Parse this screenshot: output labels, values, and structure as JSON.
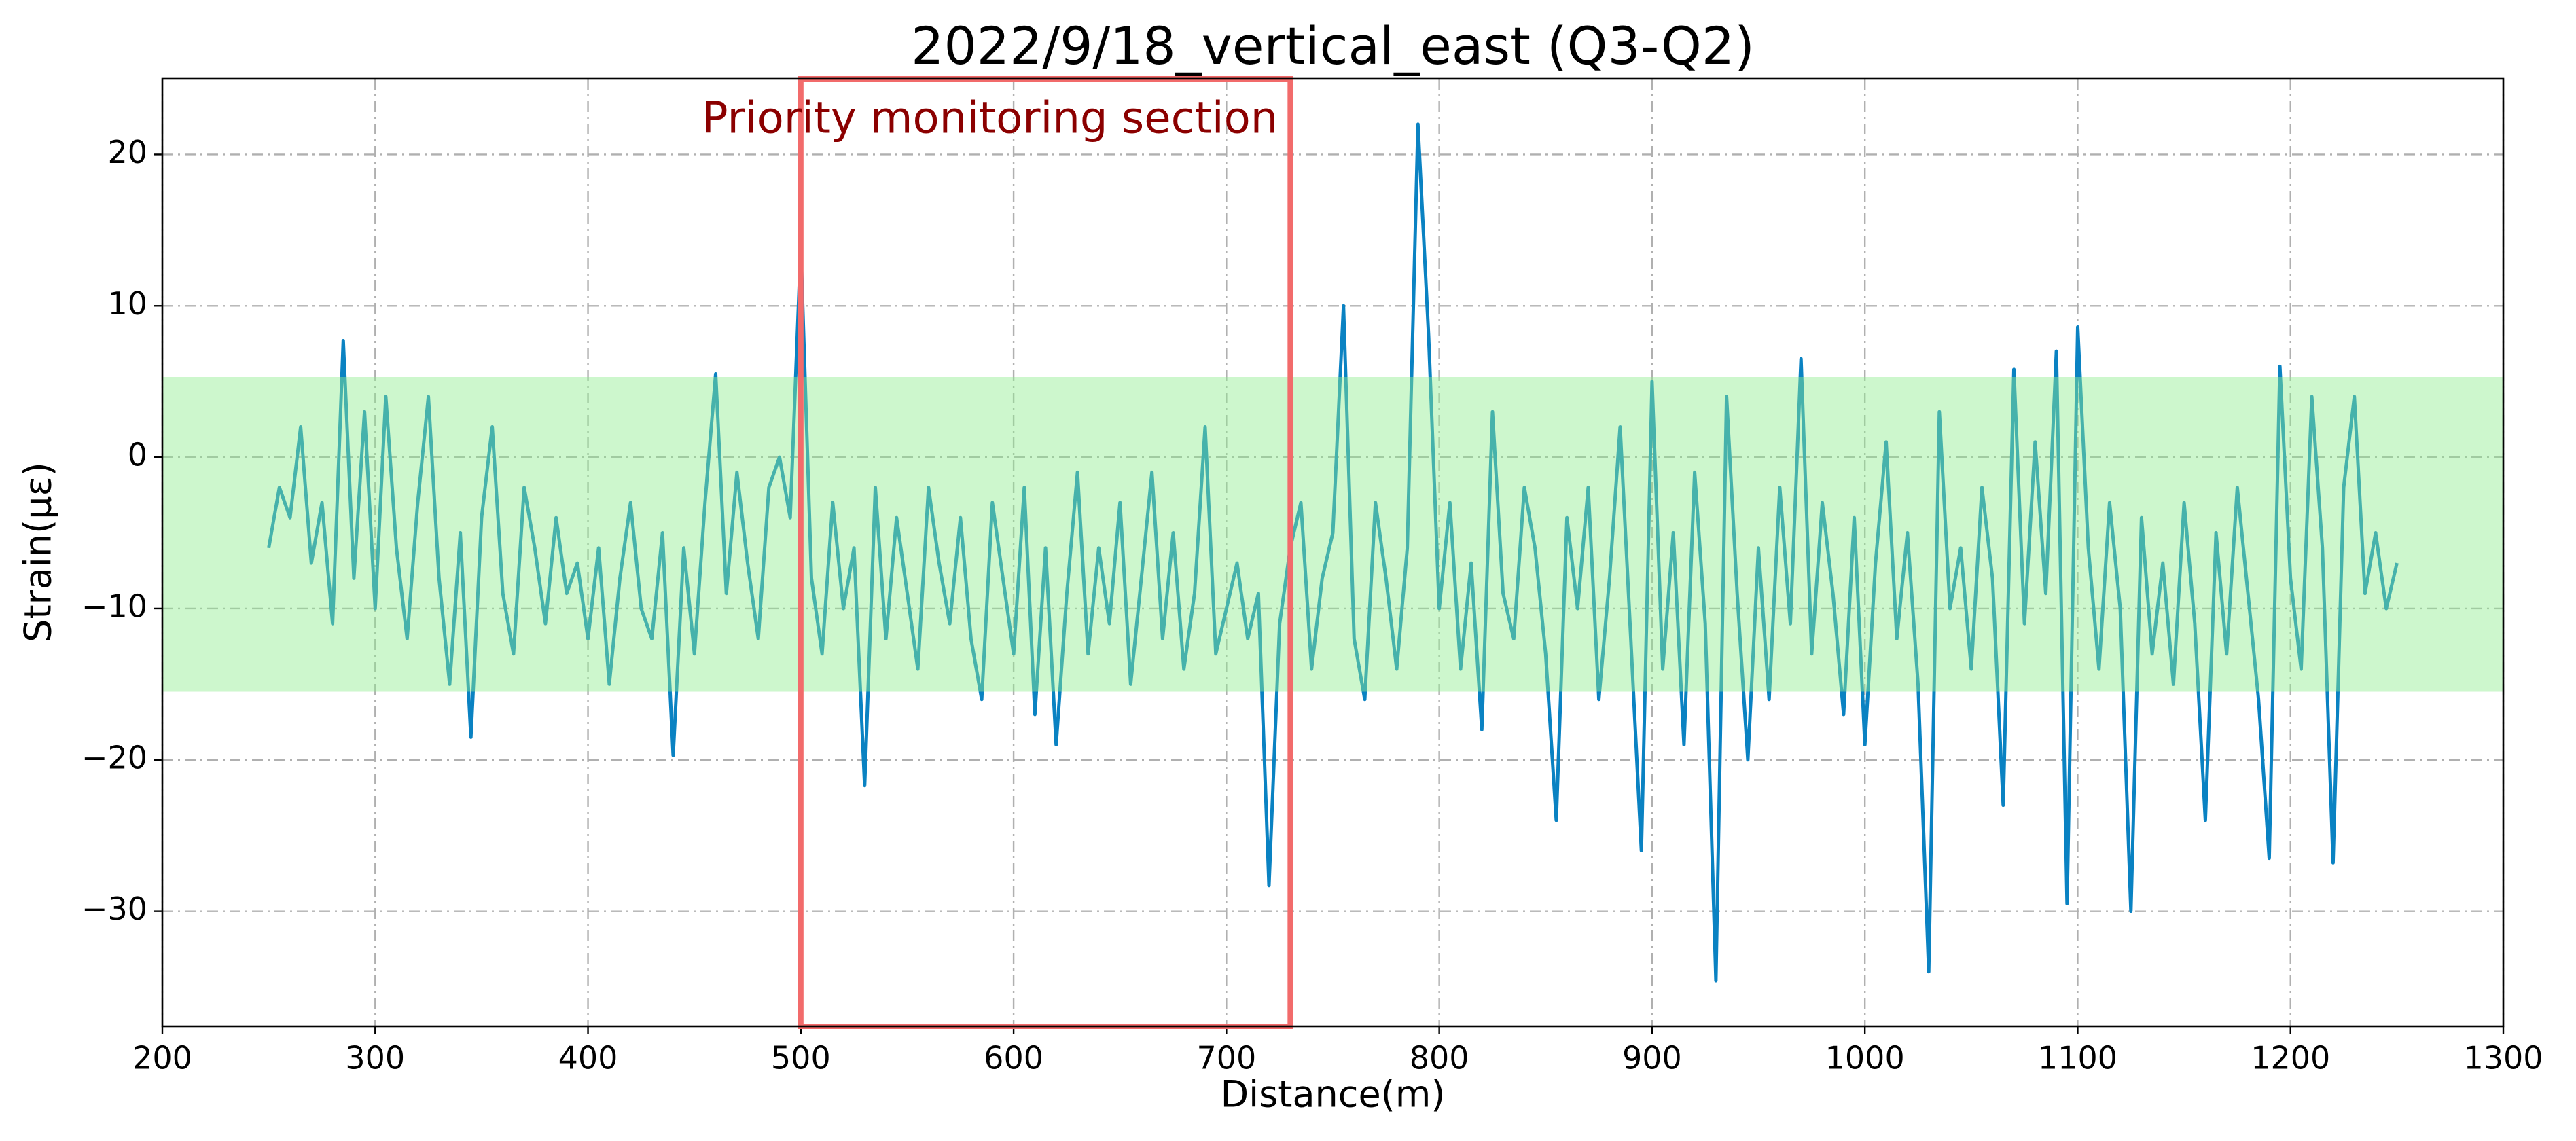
{
  "chart_data": {
    "type": "line",
    "title": "2022/9/18_vertical_east (Q3-Q2)",
    "x_label": "Distance(m)",
    "y_label": "Strain(με)",
    "color": "#0a82c2",
    "grid": true,
    "xlim": [
      200,
      1300
    ],
    "ylim": [
      -37.6,
      25
    ],
    "xticks": [
      200,
      300,
      400,
      500,
      600,
      700,
      800,
      900,
      1000,
      1100,
      1200,
      1300
    ],
    "yticks": [
      {
        "value": -30,
        "label": "−30"
      },
      {
        "value": -20,
        "label": "−20"
      },
      {
        "value": -10,
        "label": "−10"
      },
      0,
      10,
      20
    ],
    "highlight_band": {
      "ylim": [
        -15.5,
        5.3
      ],
      "color": "#90ee90"
    },
    "highlight_region": {
      "xlim": [
        500,
        730
      ],
      "color": "#f26b6b",
      "label": "Priority monitoring section",
      "label_color": "#8b0000"
    },
    "x": [
      250,
      255,
      260,
      265,
      270,
      275,
      280,
      285,
      290,
      295,
      300,
      305,
      310,
      315,
      320,
      325,
      330,
      335,
      340,
      345,
      350,
      355,
      360,
      365,
      370,
      375,
      380,
      385,
      390,
      395,
      400,
      405,
      410,
      415,
      420,
      425,
      430,
      435,
      440,
      445,
      450,
      455,
      460,
      465,
      470,
      475,
      480,
      485,
      490,
      495,
      500,
      505,
      510,
      515,
      520,
      525,
      530,
      535,
      540,
      545,
      550,
      555,
      560,
      565,
      570,
      575,
      580,
      585,
      590,
      595,
      600,
      605,
      610,
      615,
      620,
      625,
      630,
      635,
      640,
      645,
      650,
      655,
      660,
      665,
      670,
      675,
      680,
      685,
      690,
      695,
      700,
      705,
      710,
      715,
      720,
      725,
      730,
      735,
      740,
      745,
      750,
      755,
      760,
      765,
      770,
      775,
      780,
      785,
      790,
      795,
      800,
      805,
      810,
      815,
      820,
      825,
      830,
      835,
      840,
      845,
      850,
      855,
      860,
      865,
      870,
      875,
      880,
      885,
      890,
      895,
      900,
      905,
      910,
      915,
      920,
      925,
      930,
      935,
      940,
      945,
      950,
      955,
      960,
      965,
      970,
      975,
      980,
      985,
      990,
      995,
      1000,
      1005,
      1010,
      1015,
      1020,
      1025,
      1030,
      1035,
      1040,
      1045,
      1050,
      1055,
      1060,
      1065,
      1070,
      1075,
      1080,
      1085,
      1090,
      1095,
      1100,
      1105,
      1110,
      1115,
      1120,
      1125,
      1130,
      1135,
      1140,
      1145,
      1150,
      1155,
      1160,
      1165,
      1170,
      1175,
      1180,
      1185,
      1190,
      1195,
      1200,
      1205,
      1210,
      1215,
      1220,
      1225,
      1230,
      1235,
      1240,
      1245,
      1250
    ],
    "values": [
      -6,
      -2,
      -4,
      2,
      -7,
      -3,
      -11,
      7.7,
      -8,
      3,
      -10,
      4,
      -6,
      -12,
      -3,
      4,
      -8,
      -15,
      -5,
      -18.5,
      -4,
      2,
      -9,
      -13,
      -2,
      -6,
      -11,
      -4,
      -9,
      -7,
      -12,
      -6,
      -15,
      -8,
      -3,
      -10,
      -12,
      -5,
      -19.7,
      -6,
      -13,
      -3,
      5.5,
      -9,
      -1,
      -7,
      -12,
      -2,
      0,
      -4,
      14,
      -8,
      -13,
      -3,
      -10,
      -6,
      -21.7,
      -2,
      -12,
      -4,
      -9,
      -14,
      -2,
      -7,
      -11,
      -4,
      -12,
      -16,
      -3,
      -8,
      -13,
      -2,
      -17,
      -6,
      -19,
      -9,
      -1,
      -13,
      -6,
      -11,
      -3,
      -15,
      -8,
      -1,
      -12,
      -5,
      -14,
      -9,
      2,
      -13,
      -10,
      -7,
      -12,
      -9,
      -28.3,
      -11,
      -6,
      -3,
      -14,
      -8,
      -5,
      10,
      -12,
      -16,
      -3,
      -8,
      -14,
      -6,
      22,
      8,
      -10,
      -3,
      -14,
      -7,
      -18,
      3,
      -9,
      -12,
      -2,
      -6,
      -13,
      -24,
      -4,
      -10,
      -2,
      -16,
      -8,
      2,
      -12,
      -26,
      5,
      -14,
      -5,
      -19,
      -1,
      -11,
      -34.6,
      4,
      -9,
      -20,
      -6,
      -16,
      -2,
      -11,
      6.5,
      -13,
      -3,
      -9,
      -17,
      -4,
      -19,
      -7,
      1,
      -12,
      -5,
      -15,
      -34,
      3,
      -10,
      -6,
      -14,
      -2,
      -8,
      -23,
      5.8,
      -11,
      1,
      -9,
      7,
      -29.5,
      8.6,
      -6,
      -14,
      -3,
      -10,
      -30,
      -4,
      -13,
      -7,
      -15,
      -3,
      -11,
      -24,
      -5,
      -13,
      -2,
      -9,
      -16,
      -26.5,
      6,
      -8,
      -14,
      4,
      -6,
      -26.8,
      -2,
      4,
      -9,
      -5,
      -10,
      -7
    ]
  }
}
